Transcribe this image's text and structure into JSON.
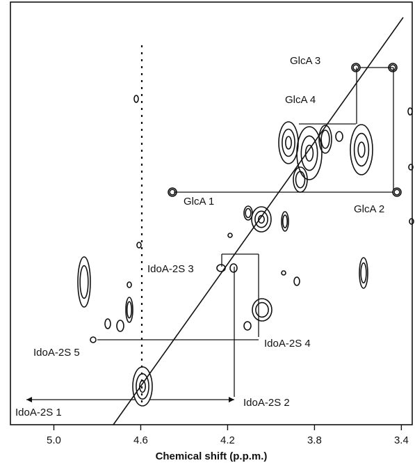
{
  "chart_data": {
    "type": "scatter",
    "title": "",
    "xlabel": "Chemical shift (p.p.m.)",
    "ylabel": "",
    "xlim": [
      5.2,
      3.35
    ],
    "ylim": [
      5.2,
      3.35
    ],
    "x_ticks": [
      "5.0",
      "4.6",
      "4.2",
      "3.8",
      "3.4"
    ],
    "x_tick_values": [
      5.0,
      4.6,
      4.2,
      3.8,
      3.4
    ],
    "grid": false,
    "diagonal": true,
    "annotations": [
      {
        "label": "GlcA 3"
      },
      {
        "label": "GlcA 4"
      },
      {
        "label": "GlcA 1"
      },
      {
        "label": "GlcA 2"
      },
      {
        "label": "IdoA-2S 3"
      },
      {
        "label": "IdoA-2S 4"
      },
      {
        "label": "IdoA-2S 5"
      },
      {
        "label": "IdoA-2S 1"
      },
      {
        "label": "IdoA-2S 2"
      }
    ],
    "diagonal_peaks": [
      {
        "x": 4.64,
        "y": 4.64
      },
      {
        "x": 4.08,
        "y": 4.06
      },
      {
        "x": 3.92,
        "y": 3.92
      },
      {
        "x": 3.86,
        "y": 3.86
      },
      {
        "x": 3.6,
        "y": 3.55
      }
    ],
    "cross_peaks": [
      {
        "x": 4.49,
        "y": 3.44,
        "assignment": "GlcA 1 / GlcA 2"
      },
      {
        "x": 3.44,
        "y": 3.59,
        "assignment": "GlcA 2 / GlcA 3"
      },
      {
        "x": 3.59,
        "y": 3.74,
        "assignment": "GlcA 3 / GlcA 4"
      },
      {
        "x": 4.2,
        "y": 4.64,
        "assignment": "IdoA-2S 2 / IdoA-2S 1"
      },
      {
        "x": 4.2,
        "y": 4.25,
        "assignment": "IdoA-2S 2 / IdoA-2S 3"
      },
      {
        "x": 4.09,
        "y": 4.25,
        "assignment": "IdoA-2S 3 / IdoA-2S 4"
      },
      {
        "x": 4.09,
        "y": 4.8,
        "assignment": "IdoA-2S 4 / IdoA-2S 5"
      },
      {
        "x": 4.88,
        "y": 4.3,
        "assignment": ""
      },
      {
        "x": 4.76,
        "y": 4.68,
        "assignment": ""
      },
      {
        "x": 4.71,
        "y": 4.48,
        "assignment": ""
      },
      {
        "x": 4.13,
        "y": 4.73,
        "assignment": ""
      },
      {
        "x": 4.06,
        "y": 4.52,
        "assignment": ""
      },
      {
        "x": 3.56,
        "y": 4.3,
        "assignment": ""
      },
      {
        "x": 3.93,
        "y": 4.07,
        "assignment": ""
      },
      {
        "x": 3.83,
        "y": 3.86,
        "assignment": ""
      }
    ]
  }
}
